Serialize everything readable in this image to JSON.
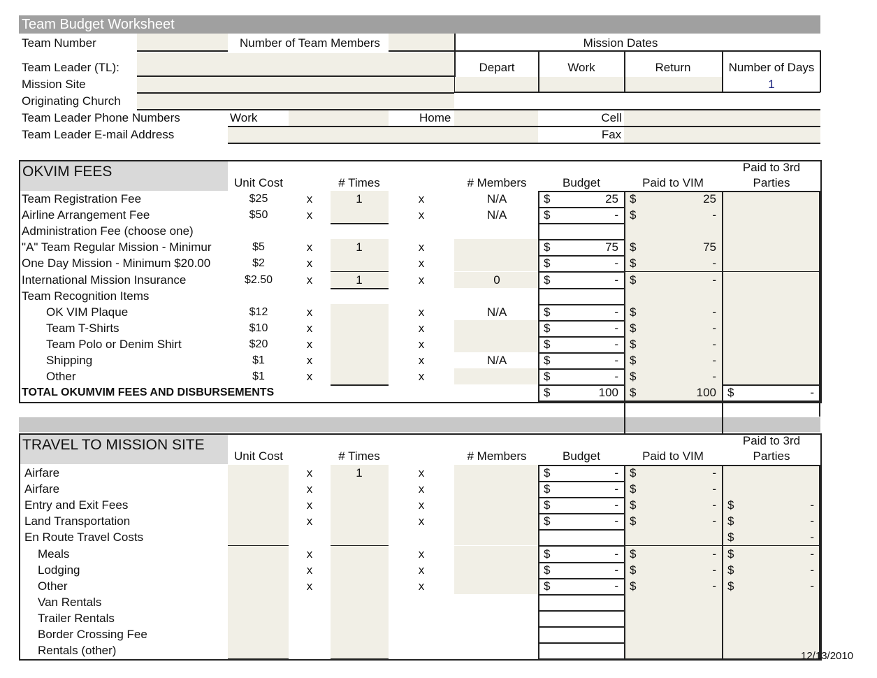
{
  "title": "Team Budget Worksheet",
  "header": {
    "team_number": "Team Number",
    "num_members": "Number of Team Members",
    "mission_dates": "Mission  Dates",
    "team_leader": "Team Leader (TL):",
    "mission_site": "Mission Site",
    "originating_church": "Originating Church",
    "phone_numbers": "Team Leader Phone Numbers",
    "email": "Team Leader E-mail Address",
    "work": "Work",
    "home": "Home",
    "cell": "Cell",
    "fax": "Fax",
    "depart": "Depart",
    "work_date": "Work",
    "return": "Return",
    "number_of_days": "Number of Days",
    "days_value": "1"
  },
  "columns": {
    "unit_cost": "Unit Cost",
    "times": "# Times",
    "members": "# Members",
    "budget": "Budget",
    "paid_vim": "Paid to VIM",
    "paid_third_1": "Paid to 3rd",
    "paid_third_2": "Parties",
    "mult": "x",
    "dollar": "$"
  },
  "okvim": {
    "title": "OKVIM FEES",
    "rows": [
      {
        "label": "Team Registration Fee",
        "unit": "$25",
        "times": "1",
        "members": "N/A",
        "budget": "25",
        "vim": "25"
      },
      {
        "label": "Airline Arrangement Fee",
        "unit": "$50",
        "times": "",
        "members": "N/A",
        "budget": "-",
        "vim": "-"
      },
      {
        "label": "Administration Fee (choose one)"
      },
      {
        "label": "\"A\" Team Regular   Mission - Minimur",
        "unit": "$5",
        "times": "1",
        "members": "",
        "budget": "75",
        "vim": "75"
      },
      {
        "label": " One Day Mission - Minimum $20.00",
        "unit": "$2",
        "times": "",
        "members": "",
        "budget": "-",
        "vim": "-"
      },
      {
        "label": "International Mission Insurance",
        "unit": "$2.50",
        "times": "1",
        "members": "0",
        "budget": "-",
        "vim": "-"
      },
      {
        "label": "Team Recognition Items"
      },
      {
        "label": "OK VIM Plaque",
        "indent": true,
        "unit": "$12",
        "times": "",
        "members": "N/A",
        "budget": "-",
        "vim": "-"
      },
      {
        "label": "Team T-Shirts",
        "indent": true,
        "unit": "$10",
        "times": "",
        "members": "",
        "budget": "-",
        "vim": "-"
      },
      {
        "label": "Team Polo or Denim Shirt",
        "indent": true,
        "unit": "$20",
        "times": "",
        "members": "",
        "budget": "-",
        "vim": "-"
      },
      {
        "label": "Shipping",
        "indent": true,
        "unit": "$1",
        "times": "",
        "members": "N/A",
        "budget": "-",
        "vim": "-"
      },
      {
        "label": "Other",
        "indent": true,
        "unit": "$1",
        "times": "",
        "members": "",
        "budget": "-",
        "vim": "-"
      },
      {
        "label": "TOTAL OKUMVIM FEES AND DISBURSEMENTS",
        "bold": true,
        "budget": "100",
        "vim": "100",
        "third": "-"
      }
    ]
  },
  "travel": {
    "title": "TRAVEL TO MISSION SITE",
    "rows": [
      {
        "label": "Airfare",
        "unit": "",
        "times": "1",
        "budget": "-",
        "vim": "-"
      },
      {
        "label": "Airfare",
        "unit": "",
        "times": "",
        "budget": "-",
        "vim": "-"
      },
      {
        "label": "Entry and Exit Fees",
        "unit": "",
        "times": "",
        "budget": "-",
        "vim": "-",
        "third": "-"
      },
      {
        "label": "Land Transportation",
        "unit": "",
        "times": "",
        "budget": "-",
        "vim": "-",
        "third": "-"
      },
      {
        "label": "En Route Travel Costs",
        "third": "-"
      },
      {
        "label": "Meals",
        "indent": true,
        "unit": "",
        "times": "",
        "budget": "-",
        "vim": "-",
        "third": "-"
      },
      {
        "label": "Lodging",
        "indent": true,
        "unit": "",
        "times": "",
        "budget": "-",
        "vim": "-",
        "third": "-"
      },
      {
        "label": "Other",
        "indent": true,
        "unit": "",
        "times": "",
        "budget": "-",
        "vim": "-",
        "third": "-"
      },
      {
        "label": "Van Rentals",
        "indent": true
      },
      {
        "label": "Trailer Rentals",
        "indent": true
      },
      {
        "label": "Border Crossing Fee",
        "indent": true
      },
      {
        "label": "Rentals (other)",
        "indent": true
      }
    ]
  },
  "footer_date": "12/13/2010",
  "colors": {
    "title_bar": "#a0a0a0",
    "section_header": "#d9d9d9",
    "input_fill": "#f1efe6"
  }
}
